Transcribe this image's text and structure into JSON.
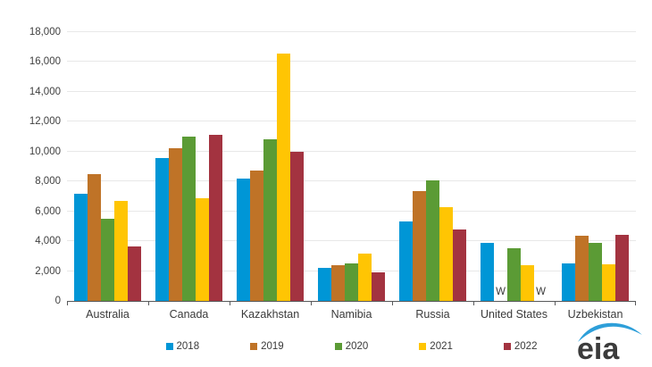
{
  "chart_data": {
    "type": "bar",
    "title": "",
    "xlabel": "",
    "ylabel": "",
    "ylim": [
      0,
      18000
    ],
    "ytick_step": 2000,
    "ytick_format": "comma",
    "grid": true,
    "legend_position": "bottom",
    "withheld_symbol": "W",
    "categories": [
      "Australia",
      "Canada",
      "Kazakhstan",
      "Namibia",
      "Russia",
      "United States",
      "Uzbekistan"
    ],
    "series": [
      {
        "name": "2018",
        "color": "#0096d6",
        "values": [
          7200,
          9550,
          8200,
          2200,
          5350,
          3900,
          2500
        ]
      },
      {
        "name": "2019",
        "color": "#bf7327",
        "values": [
          8500,
          10200,
          8750,
          2400,
          7350,
          "W",
          4350
        ]
      },
      {
        "name": "2020",
        "color": "#5b9b35",
        "values": [
          5500,
          11000,
          10850,
          2500,
          8100,
          3550,
          3900
        ]
      },
      {
        "name": "2021",
        "color": "#ffc503",
        "values": [
          6700,
          6900,
          16550,
          3200,
          6300,
          2400,
          2450
        ]
      },
      {
        "name": "2022",
        "color": "#a33340",
        "values": [
          3650,
          11150,
          10000,
          1900,
          4800,
          "W",
          4450
        ]
      }
    ]
  },
  "branding": {
    "logo_text": "eia",
    "logo_text_color": "#3b3b3b",
    "logo_swoosh_color": "#2e9fd9"
  },
  "style": {
    "gridline_color": "#e8e8e8",
    "axis_color": "#58595b",
    "label_color": "#3a3a3a"
  }
}
